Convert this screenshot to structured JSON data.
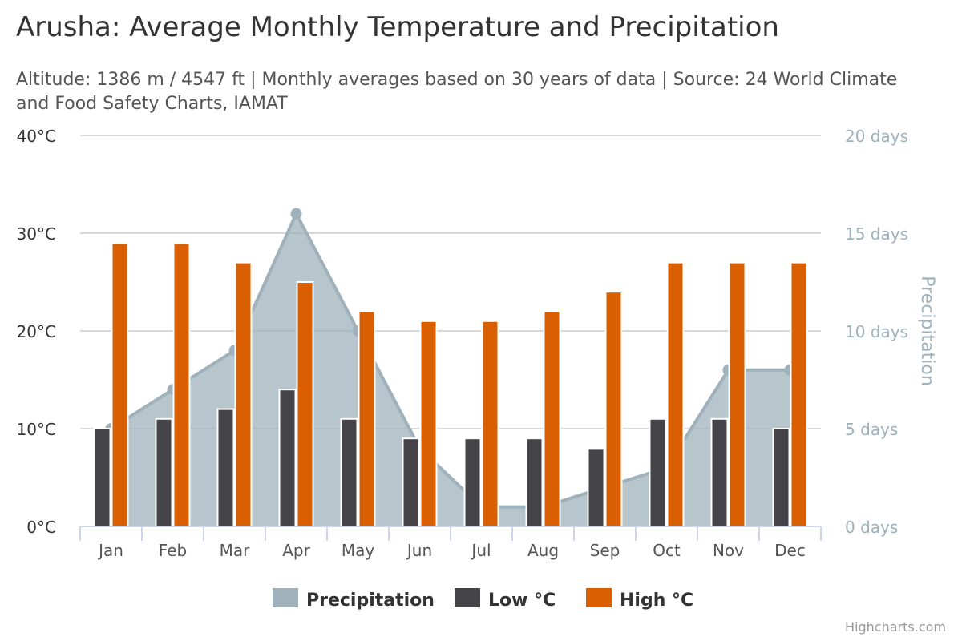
{
  "title": "Arusha: Average Monthly Temperature and Precipitation",
  "subtitle": {
    "line1": "Altitude: 1386 m / 4547 ft | Monthly averages based on 30 years of data | Source: 24 World Climate",
    "line2": "and Food Safety Charts, IAMAT"
  },
  "credits": "Highcharts.com",
  "chart_data": {
    "type": "bar",
    "categories": [
      "Jan",
      "Feb",
      "Mar",
      "Apr",
      "May",
      "Jun",
      "Jul",
      "Aug",
      "Sep",
      "Oct",
      "Nov",
      "Dec"
    ],
    "y_axis_left": {
      "ticks": [
        0,
        10,
        20,
        30,
        40
      ],
      "tick_labels": [
        "0°C",
        "10°C",
        "20°C",
        "30°C",
        "40°C"
      ],
      "ylim": [
        0,
        40
      ]
    },
    "y_axis_right": {
      "title": "Precipitation",
      "ticks": [
        0,
        5,
        10,
        15,
        20
      ],
      "tick_labels": [
        "0 days",
        "5 days",
        "10 days",
        "15 days",
        "20 days"
      ],
      "ylim": [
        0,
        20
      ]
    },
    "series": [
      {
        "name": "Precipitation",
        "type": "area",
        "axis": "right",
        "color": "#9fb1bb",
        "values": [
          5,
          7,
          9,
          16,
          10,
          4,
          1,
          1,
          2,
          3,
          8,
          8
        ]
      },
      {
        "name": "Low °C",
        "type": "bar",
        "axis": "left",
        "color": "#434348",
        "values": [
          10,
          11,
          12,
          14,
          11,
          9,
          9,
          9,
          8,
          11,
          11,
          10
        ]
      },
      {
        "name": "High °C",
        "type": "bar",
        "axis": "left",
        "color": "#d95f02",
        "values": [
          29,
          29,
          27,
          25,
          22,
          21,
          21,
          22,
          24,
          27,
          27,
          27
        ]
      }
    ],
    "grid": true,
    "legend": "bottom-center"
  }
}
